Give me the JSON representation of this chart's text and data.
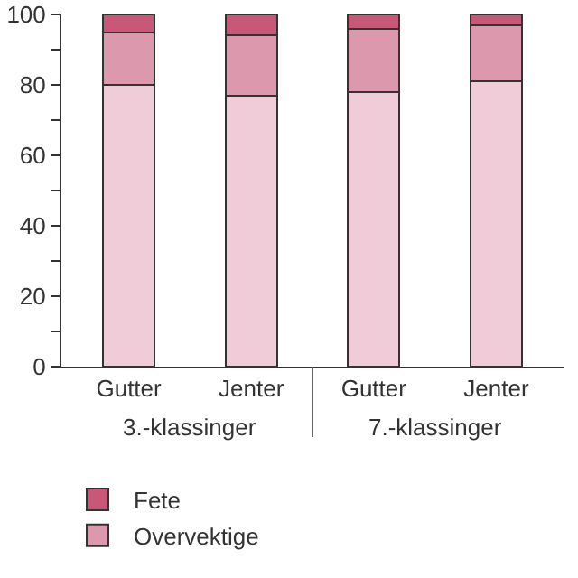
{
  "chart_data": {
    "type": "bar",
    "stacked": true,
    "categories": [
      "Gutter",
      "Jenter",
      "Gutter",
      "Jenter"
    ],
    "series": [
      {
        "color": "#f0ccd8",
        "values": [
          80,
          77,
          78,
          81
        ]
      },
      {
        "name": "Overvektige",
        "color": "#dc98ad",
        "values": [
          15,
          17,
          18,
          16
        ]
      },
      {
        "name": "Fete",
        "color": "#c85877",
        "values": [
          5,
          6,
          4,
          3
        ]
      }
    ],
    "ylim": [
      0,
      100
    ],
    "yticks": [
      0,
      {
        "value": 10,
        "label": null
      },
      20,
      {
        "value": 30,
        "label": null
      },
      40,
      {
        "value": 50,
        "label": null
      },
      60,
      {
        "value": 70,
        "label": null
      },
      80,
      {
        "value": 90,
        "label": null
      },
      100
    ],
    "grid": false,
    "legend": "bottom left",
    "annotations": [
      "3.-klassinger",
      "7.-klassinger"
    ]
  }
}
